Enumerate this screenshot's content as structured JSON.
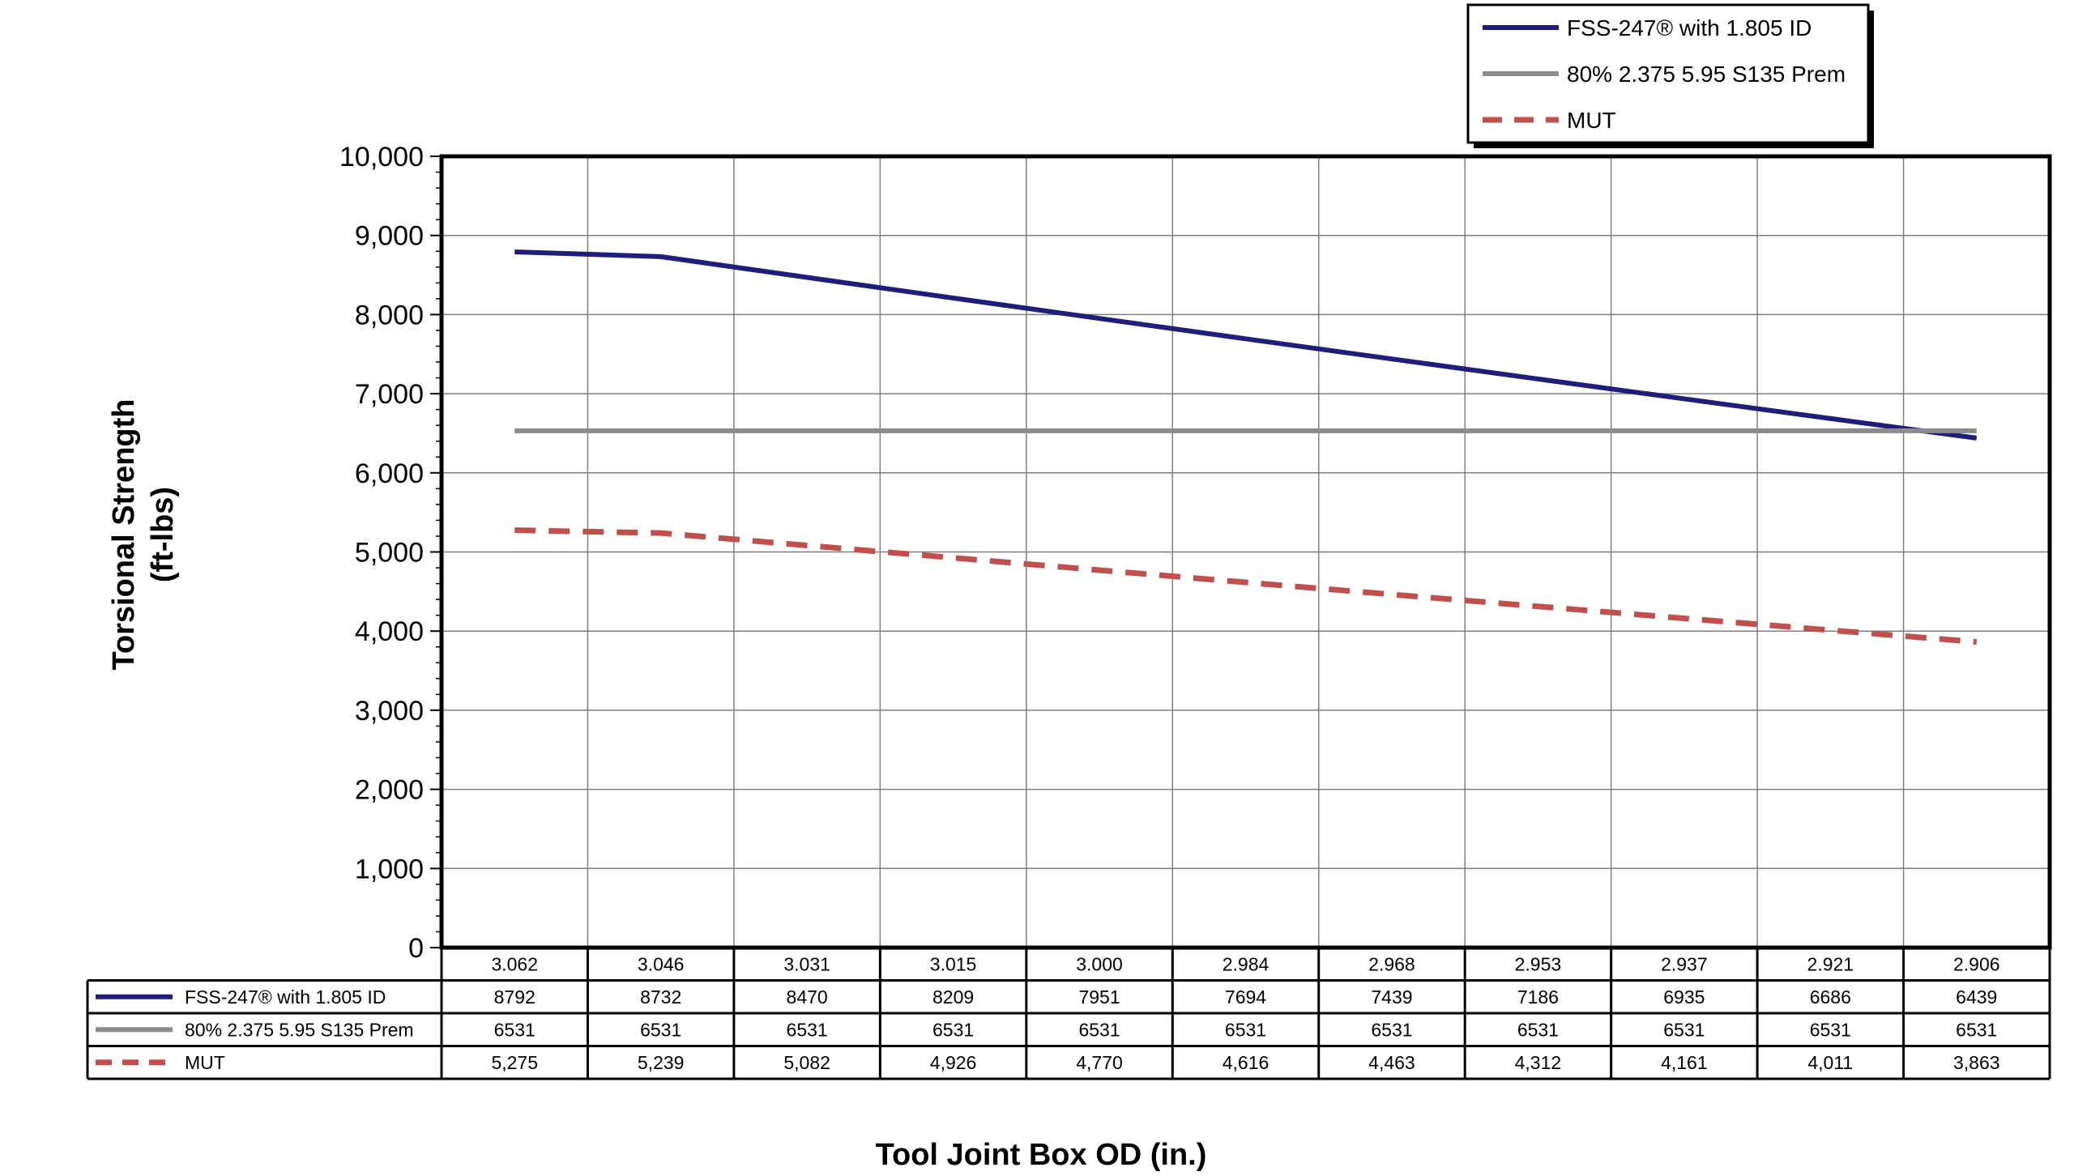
{
  "chart_data": {
    "type": "line",
    "xlabel": "Tool Joint Box OD (in.)",
    "ylabel_lines": [
      "Torsional Strength",
      "(ft-lbs)"
    ],
    "ylim": [
      0,
      10000
    ],
    "yticks": [
      "0",
      "1,000",
      "2,000",
      "3,000",
      "4,000",
      "5,000",
      "6,000",
      "7,000",
      "8,000",
      "9,000",
      "10,000"
    ],
    "grid": true,
    "legend_position": "top-right",
    "categories": [
      "3.062",
      "3.046",
      "3.031",
      "3.015",
      "3.000",
      "2.984",
      "2.968",
      "2.953",
      "2.937",
      "2.921",
      "2.906"
    ],
    "series": [
      {
        "name": "FSS-247® with 1.805 ID",
        "color": "#1f1f7a",
        "dash": "solid",
        "values": [
          8792,
          8732,
          8470,
          8209,
          7951,
          7694,
          7439,
          7186,
          6935,
          6686,
          6439
        ],
        "labels": [
          "8792",
          "8732",
          "8470",
          "8209",
          "7951",
          "7694",
          "7439",
          "7186",
          "6935",
          "6686",
          "6439"
        ]
      },
      {
        "name": "80% 2.375 5.95 S135 Prem",
        "color": "#8c8c8c",
        "dash": "solid",
        "values": [
          6531,
          6531,
          6531,
          6531,
          6531,
          6531,
          6531,
          6531,
          6531,
          6531,
          6531
        ],
        "labels": [
          "6531",
          "6531",
          "6531",
          "6531",
          "6531",
          "6531",
          "6531",
          "6531",
          "6531",
          "6531",
          "6531"
        ]
      },
      {
        "name": "MUT",
        "color": "#c0504d",
        "dash": "dashed",
        "values": [
          5275,
          5239,
          5082,
          4926,
          4770,
          4616,
          4463,
          4312,
          4161,
          4011,
          3863
        ],
        "labels": [
          "5,275",
          "5,239",
          "5,082",
          "4,926",
          "4,770",
          "4,616",
          "4,463",
          "4,312",
          "4,161",
          "4,011",
          "3,863"
        ]
      }
    ]
  }
}
